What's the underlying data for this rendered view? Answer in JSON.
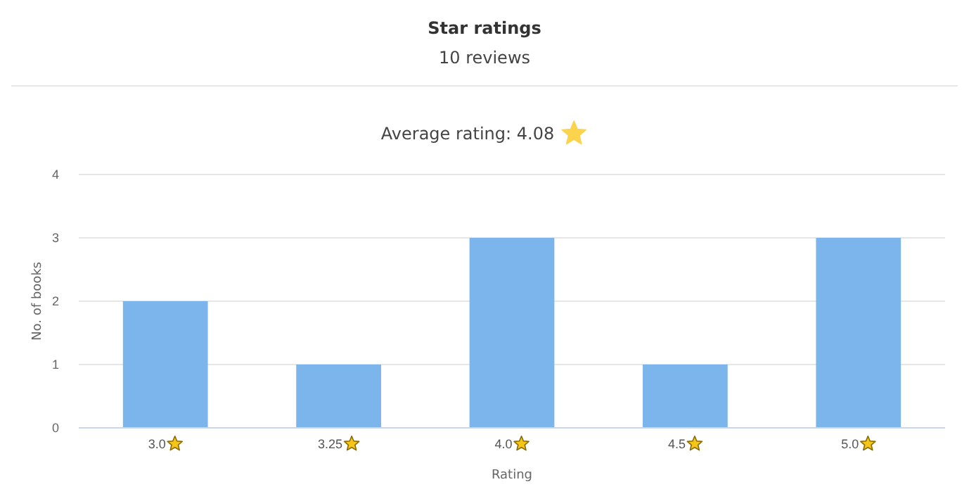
{
  "chart_data": {
    "type": "bar",
    "title": "Star ratings",
    "subtitle": "10 reviews",
    "annotations": [
      "Average rating: 4.08"
    ],
    "xlabel": "Rating",
    "ylabel": "No. of books",
    "categories": [
      "3.0",
      "3.25",
      "4.0",
      "4.5",
      "5.0"
    ],
    "values": [
      2,
      1,
      3,
      1,
      3
    ],
    "color": "#7cb5ec",
    "ylim": [
      0,
      4
    ],
    "yticks": [
      0,
      1,
      2,
      3,
      4
    ],
    "grid": "y"
  }
}
